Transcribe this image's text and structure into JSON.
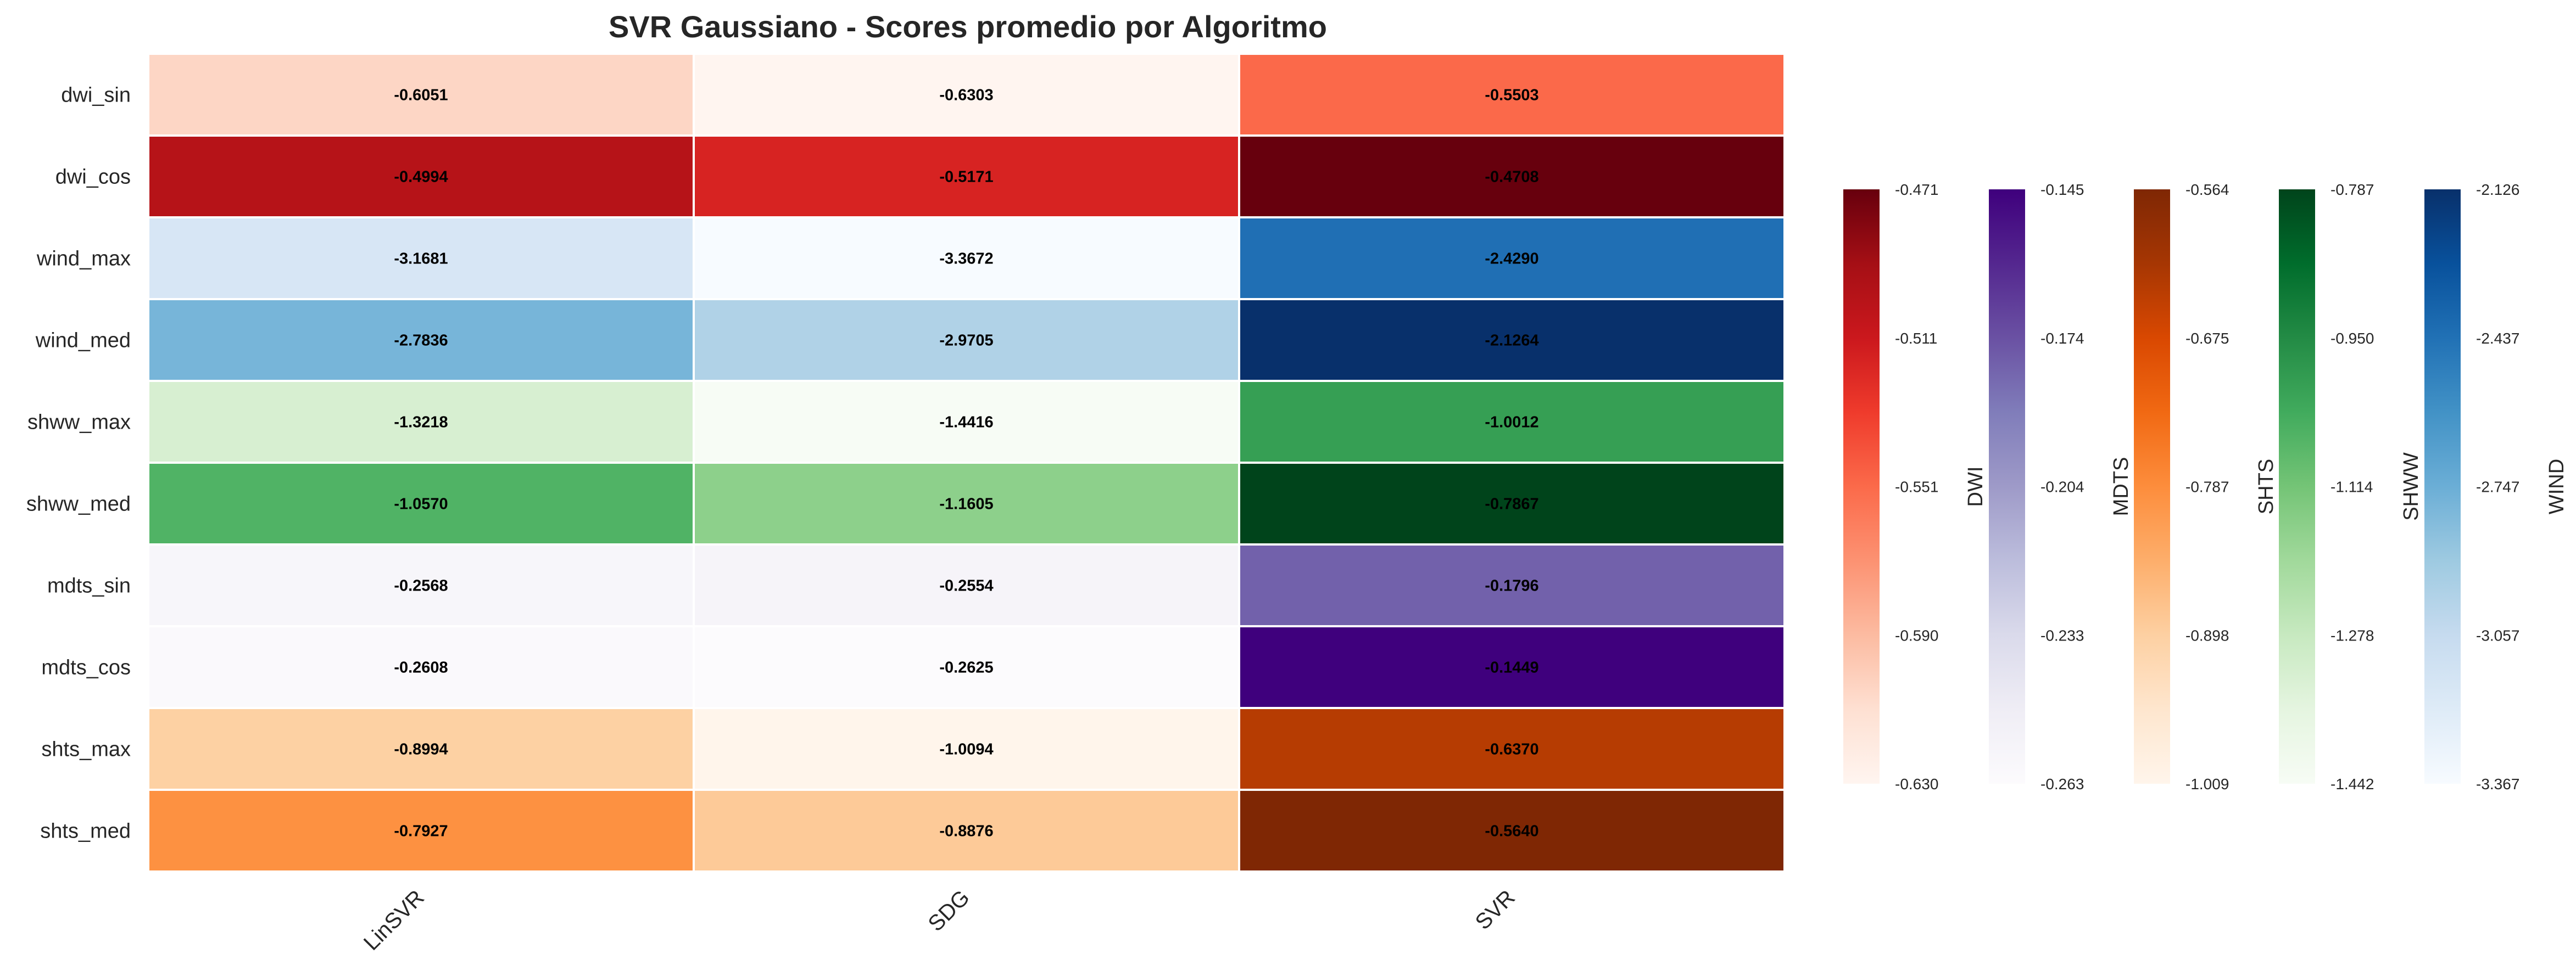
{
  "chart_data": {
    "type": "heatmap",
    "title": "SVR Gaussiano - Scores promedio por Algoritmo",
    "columns": [
      "LinSVR",
      "SDG",
      "SVR"
    ],
    "rows": [
      {
        "label": "dwi_sin",
        "group": "DWI",
        "values": [
          -0.6051,
          -0.6303,
          -0.5503
        ],
        "display": [
          "-0.6051",
          "-0.6303",
          "-0.5503"
        ]
      },
      {
        "label": "dwi_cos",
        "group": "DWI",
        "values": [
          -0.4994,
          -0.5171,
          -0.4708
        ],
        "display": [
          "-0.4994",
          "-0.5171",
          "-0.4708"
        ]
      },
      {
        "label": "wind_max",
        "group": "WIND",
        "values": [
          -3.1681,
          -3.3672,
          -2.429
        ],
        "display": [
          "-3.1681",
          "-3.3672",
          "-2.4290"
        ]
      },
      {
        "label": "wind_med",
        "group": "WIND",
        "values": [
          -2.7836,
          -2.9705,
          -2.1264
        ],
        "display": [
          "-2.7836",
          "-2.9705",
          "-2.1264"
        ]
      },
      {
        "label": "shww_max",
        "group": "SHWW",
        "values": [
          -1.3218,
          -1.4416,
          -1.0012
        ],
        "display": [
          "-1.3218",
          "-1.4416",
          "-1.0012"
        ]
      },
      {
        "label": "shww_med",
        "group": "SHWW",
        "values": [
          -1.057,
          -1.1605,
          -0.7867
        ],
        "display": [
          "-1.0570",
          "-1.1605",
          "-0.7867"
        ]
      },
      {
        "label": "mdts_sin",
        "group": "MDTS",
        "values": [
          -0.2568,
          -0.2554,
          -0.1796
        ],
        "display": [
          "-0.2568",
          "-0.2554",
          "-0.1796"
        ]
      },
      {
        "label": "mdts_cos",
        "group": "MDTS",
        "values": [
          -0.2608,
          -0.2625,
          -0.1449
        ],
        "display": [
          "-0.2608",
          "-0.2625",
          "-0.1449"
        ]
      },
      {
        "label": "shts_max",
        "group": "SHTS",
        "values": [
          -0.8994,
          -1.0094,
          -0.637
        ],
        "display": [
          "-0.8994",
          "-1.0094",
          "-0.6370"
        ]
      },
      {
        "label": "shts_med",
        "group": "SHTS",
        "values": [
          -0.7927,
          -0.8876,
          -0.564
        ],
        "display": [
          "-0.7927",
          "-0.8876",
          "-0.5640"
        ]
      }
    ],
    "colorbars": [
      {
        "label": "DWI",
        "group": "DWI",
        "colormap": "Reds",
        "vmin": -0.6303,
        "vmax": -0.4708,
        "ticks": [
          "-0.471",
          "-0.511",
          "-0.551",
          "-0.590",
          "-0.630"
        ]
      },
      {
        "label": "MDTS",
        "group": "MDTS",
        "colormap": "Purples",
        "vmin": -0.2625,
        "vmax": -0.1449,
        "ticks": [
          "-0.145",
          "-0.174",
          "-0.204",
          "-0.233",
          "-0.263"
        ]
      },
      {
        "label": "SHTS",
        "group": "SHTS",
        "colormap": "Oranges",
        "vmin": -1.0094,
        "vmax": -0.564,
        "ticks": [
          "-0.564",
          "-0.675",
          "-0.787",
          "-0.898",
          "-1.009"
        ]
      },
      {
        "label": "SHWW",
        "group": "SHWW",
        "colormap": "Greens",
        "vmin": -1.4416,
        "vmax": -0.7867,
        "ticks": [
          "-0.787",
          "-0.950",
          "-1.114",
          "-1.278",
          "-1.442"
        ]
      },
      {
        "label": "WIND",
        "group": "WIND",
        "colormap": "Blues",
        "vmin": -3.3672,
        "vmax": -2.1264,
        "ticks": [
          "-2.126",
          "-2.437",
          "-2.747",
          "-3.057",
          "-3.367"
        ]
      }
    ],
    "colormaps": {
      "Reds": [
        "#fff5f0",
        "#fee0d2",
        "#fcbba1",
        "#fc9272",
        "#fb6a4a",
        "#ef3b2c",
        "#cb181d",
        "#a50f15",
        "#67000d"
      ],
      "Purples": [
        "#fcfbfd",
        "#efedf5",
        "#dadaeb",
        "#bcbddc",
        "#9e9ac8",
        "#807dba",
        "#6a51a3",
        "#54278f",
        "#3f007d"
      ],
      "Oranges": [
        "#fff5eb",
        "#fee6ce",
        "#fdd0a2",
        "#fdae6b",
        "#fd8d3c",
        "#f16913",
        "#d94801",
        "#a63603",
        "#7f2704"
      ],
      "Greens": [
        "#f7fcf5",
        "#e5f5e0",
        "#c7e9c0",
        "#a1d99b",
        "#74c476",
        "#41ab5d",
        "#238b45",
        "#006d2c",
        "#00441b"
      ],
      "Blues": [
        "#f7fbff",
        "#deebf7",
        "#c6dbef",
        "#9ecae1",
        "#6baed6",
        "#4292c6",
        "#2171b5",
        "#08519c",
        "#08306b"
      ]
    },
    "grid": false,
    "legend": "colorbars-right"
  }
}
